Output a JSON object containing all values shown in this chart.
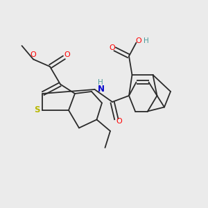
{
  "bg_color": "#ebebeb",
  "bond_color": "#2a2a2a",
  "bond_width": 1.3,
  "atom_colors": {
    "S": "#b8b800",
    "O": "#ff0000",
    "N": "#0000cc",
    "H_teal": "#4a9a9a",
    "C": "#2a2a2a"
  },
  "figsize": [
    3.0,
    3.0
  ],
  "dpi": 100,
  "xlim": [
    0,
    10
  ],
  "ylim": [
    0,
    10
  ]
}
